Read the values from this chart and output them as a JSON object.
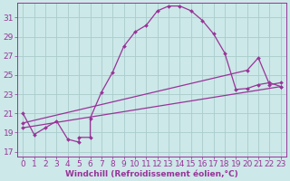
{
  "bg_color": "#cce8e8",
  "grid_color": "#aacccc",
  "line_color": "#993399",
  "marker_color": "#993399",
  "xlabel": "Windchill (Refroidissement éolien,°C)",
  "ylabel_ticks": [
    17,
    19,
    21,
    23,
    25,
    27,
    29,
    31
  ],
  "xlabel_ticks": [
    0,
    1,
    2,
    3,
    4,
    5,
    6,
    7,
    8,
    9,
    10,
    11,
    12,
    13,
    14,
    15,
    16,
    17,
    18,
    19,
    20,
    21,
    22,
    23
  ],
  "xlim": [
    -0.5,
    23.5
  ],
  "ylim": [
    16.5,
    32.5
  ],
  "series1_x": [
    0,
    1,
    2,
    3,
    4,
    5,
    5,
    6,
    6,
    7,
    8,
    9,
    10,
    11,
    12,
    13,
    14,
    15,
    16,
    17,
    18,
    19,
    20,
    21,
    22,
    23
  ],
  "series1_y": [
    21.0,
    18.8,
    19.5,
    20.2,
    18.3,
    18.0,
    18.5,
    18.5,
    20.5,
    23.2,
    25.3,
    28.0,
    29.5,
    30.2,
    31.7,
    32.2,
    32.2,
    31.7,
    30.7,
    29.3,
    27.3,
    23.5,
    23.6,
    24.0,
    24.2,
    23.8
  ],
  "series2_x": [
    0,
    23
  ],
  "series2_y": [
    19.5,
    23.8
  ],
  "series3_x": [
    0,
    20,
    21,
    22,
    23
  ],
  "series3_y": [
    20.0,
    25.5,
    26.8,
    24.0,
    24.2
  ],
  "font_size": 6.5,
  "marker_size": 2.0,
  "linewidth": 0.9
}
